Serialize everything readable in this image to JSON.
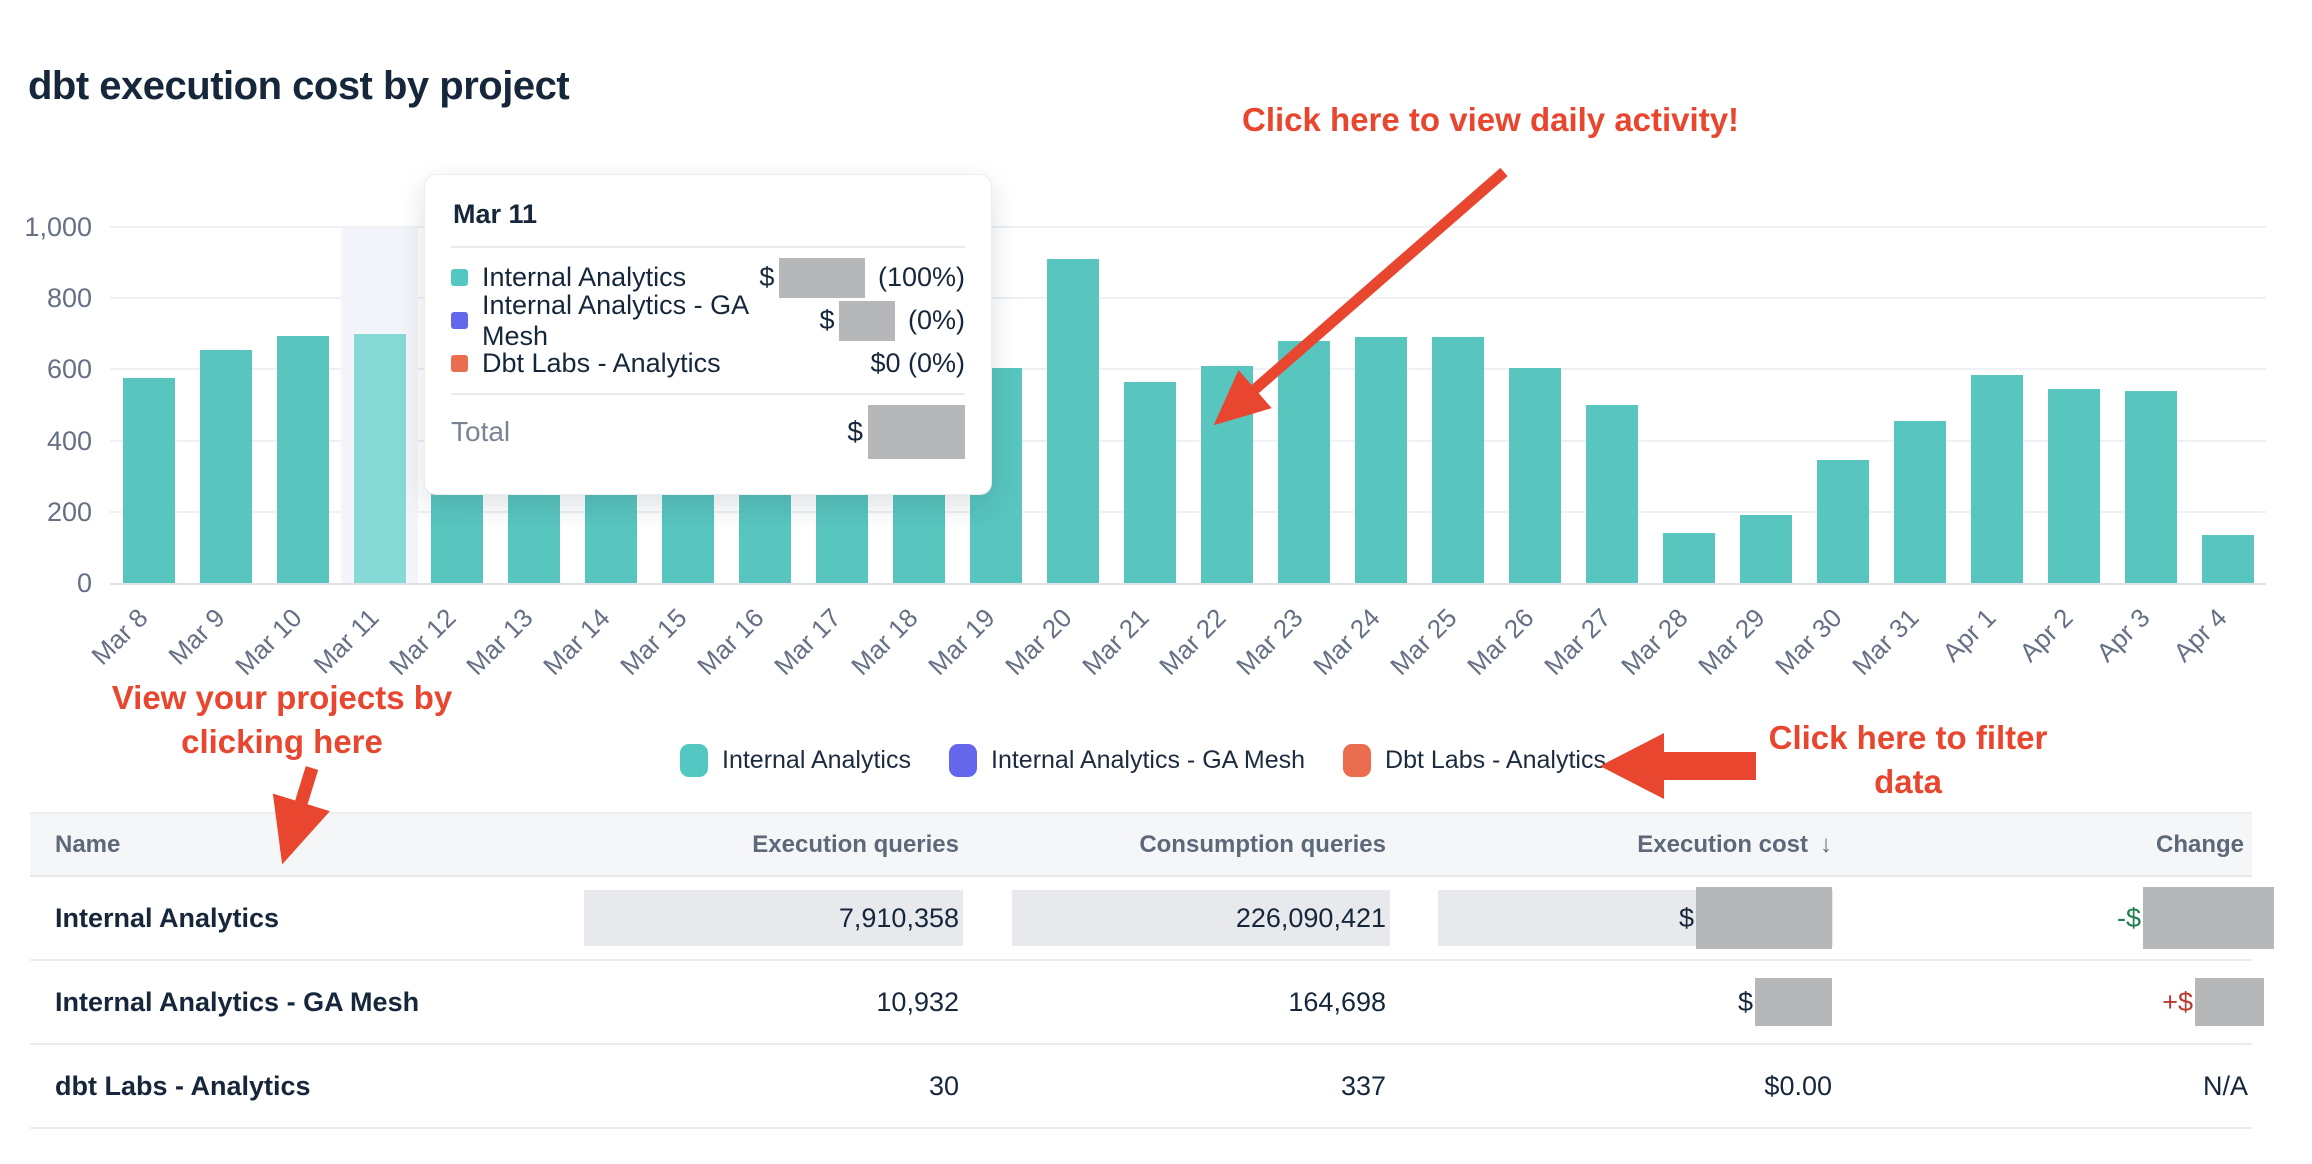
{
  "title": "dbt execution cost by project",
  "annotations": {
    "daily_activity": "Click here to view daily activity!",
    "projects_line1": "View your projects by",
    "projects_line2": "clicking here",
    "filter_line1": "Click here to filter",
    "filter_line2": "data",
    "color": "#e8462e"
  },
  "chart_data": {
    "type": "bar",
    "stacked": true,
    "title": "dbt execution cost by project",
    "xlabel": "",
    "ylabel": "",
    "ylim": [
      0,
      1000
    ],
    "grid": true,
    "legend_position": "bottom",
    "yticks": [
      {
        "label": "0",
        "value": 0
      },
      {
        "label": "200",
        "value": 200
      },
      {
        "label": "400",
        "value": 400
      },
      {
        "label": "600",
        "value": 600
      },
      {
        "label": "800",
        "value": 800
      },
      {
        "label": "1,000",
        "value": 1000
      }
    ],
    "categories": [
      "Mar 8",
      "Mar 9",
      "Mar 10",
      "Mar 11",
      "Mar 12",
      "Mar 13",
      "Mar 14",
      "Mar 15",
      "Mar 16",
      "Mar 17",
      "Mar 18",
      "Mar 19",
      "Mar 20",
      "Mar 21",
      "Mar 22",
      "Mar 23",
      "Mar 24",
      "Mar 25",
      "Mar 26",
      "Mar 27",
      "Mar 28",
      "Mar 29",
      "Mar 30",
      "Mar 31",
      "Apr 1",
      "Apr 2",
      "Apr 3",
      "Apr 4"
    ],
    "series": [
      {
        "name": "Internal Analytics",
        "color": "#58c5bf",
        "values": [
          575,
          655,
          695,
          700,
          310,
          310,
          310,
          310,
          310,
          310,
          310,
          605,
          910,
          565,
          610,
          680,
          690,
          690,
          605,
          500,
          140,
          190,
          345,
          455,
          585,
          545,
          540,
          135
        ]
      },
      {
        "name": "Internal Analytics - GA Mesh",
        "color": "#6467ec",
        "values": [
          0,
          0,
          0,
          0,
          0,
          0,
          0,
          0,
          0,
          0,
          0,
          0,
          0,
          0,
          0,
          0,
          0,
          0,
          0,
          0,
          0,
          0,
          0,
          0,
          0,
          0,
          0,
          0
        ]
      },
      {
        "name": "Dbt Labs - Analytics",
        "color": "#e96d4e",
        "values": [
          0,
          0,
          0,
          0,
          0,
          0,
          0,
          0,
          0,
          0,
          0,
          0,
          0,
          0,
          0,
          0,
          0,
          0,
          0,
          0,
          0,
          0,
          0,
          0,
          0,
          0,
          0,
          0
        ]
      }
    ],
    "hovered_category": "Mar 11",
    "hover_bar_color": "#85dad5",
    "occluded_by_tooltip": [
      "Mar 12",
      "Mar 13",
      "Mar 14",
      "Mar 15",
      "Mar 16",
      "Mar 17",
      "Mar 18"
    ],
    "occlusion_note": "Bar tops for Mar 12–Mar 18 are hidden behind the tooltip; values are visible minimums"
  },
  "tooltip": {
    "title": "Mar 11",
    "rows": [
      {
        "label": "Internal Analytics",
        "color": "#53c8c2",
        "prefix": "$",
        "redacted": true,
        "size": "r-tt1",
        "pct": "(100%)"
      },
      {
        "label": "Internal Analytics - GA Mesh",
        "color": "#6467ec",
        "prefix": "$",
        "redacted": true,
        "size": "r-tt2",
        "pct": "(0%)"
      },
      {
        "label": "Dbt Labs - Analytics",
        "color": "#e96d4e",
        "text": "$0 (0%)",
        "redacted": false
      }
    ],
    "total_label": "Total",
    "total_prefix": "$",
    "total_redacted": true
  },
  "legend": {
    "items": [
      {
        "label": "Internal Analytics",
        "color": "#53c8c2"
      },
      {
        "label": "Internal Analytics - GA Mesh",
        "color": "#6467ec"
      },
      {
        "label": "Dbt Labs - Analytics",
        "color": "#e96d4e"
      }
    ]
  },
  "table": {
    "headers": [
      "Name",
      "Execution queries",
      "Consumption queries",
      "Execution cost",
      "Change"
    ],
    "sort": {
      "column": "Execution cost",
      "arrow": "↓"
    },
    "rows": [
      {
        "name": "Internal Analytics",
        "execution_queries": "7,910,358",
        "consumption_queries": "226,090,421",
        "execution_cost": {
          "prefix": "$",
          "redacted": true,
          "size": "r-big"
        },
        "change": {
          "prefix": "-$",
          "redacted": true,
          "size": "r-chg1",
          "sign": "neg"
        },
        "highlighted": true
      },
      {
        "name": "Internal Analytics - GA Mesh",
        "execution_queries": "10,932",
        "consumption_queries": "164,698",
        "execution_cost": {
          "prefix": "$",
          "redacted": true,
          "size": "r-c4b"
        },
        "change": {
          "prefix": "+$",
          "redacted": true,
          "size": "r-chg2",
          "sign": "pos"
        },
        "highlighted": false
      },
      {
        "name": "dbt Labs - Analytics",
        "execution_queries": "30",
        "consumption_queries": "337",
        "execution_cost": {
          "text": "$0.00"
        },
        "change": {
          "text": "N/A"
        },
        "highlighted": false
      }
    ]
  }
}
